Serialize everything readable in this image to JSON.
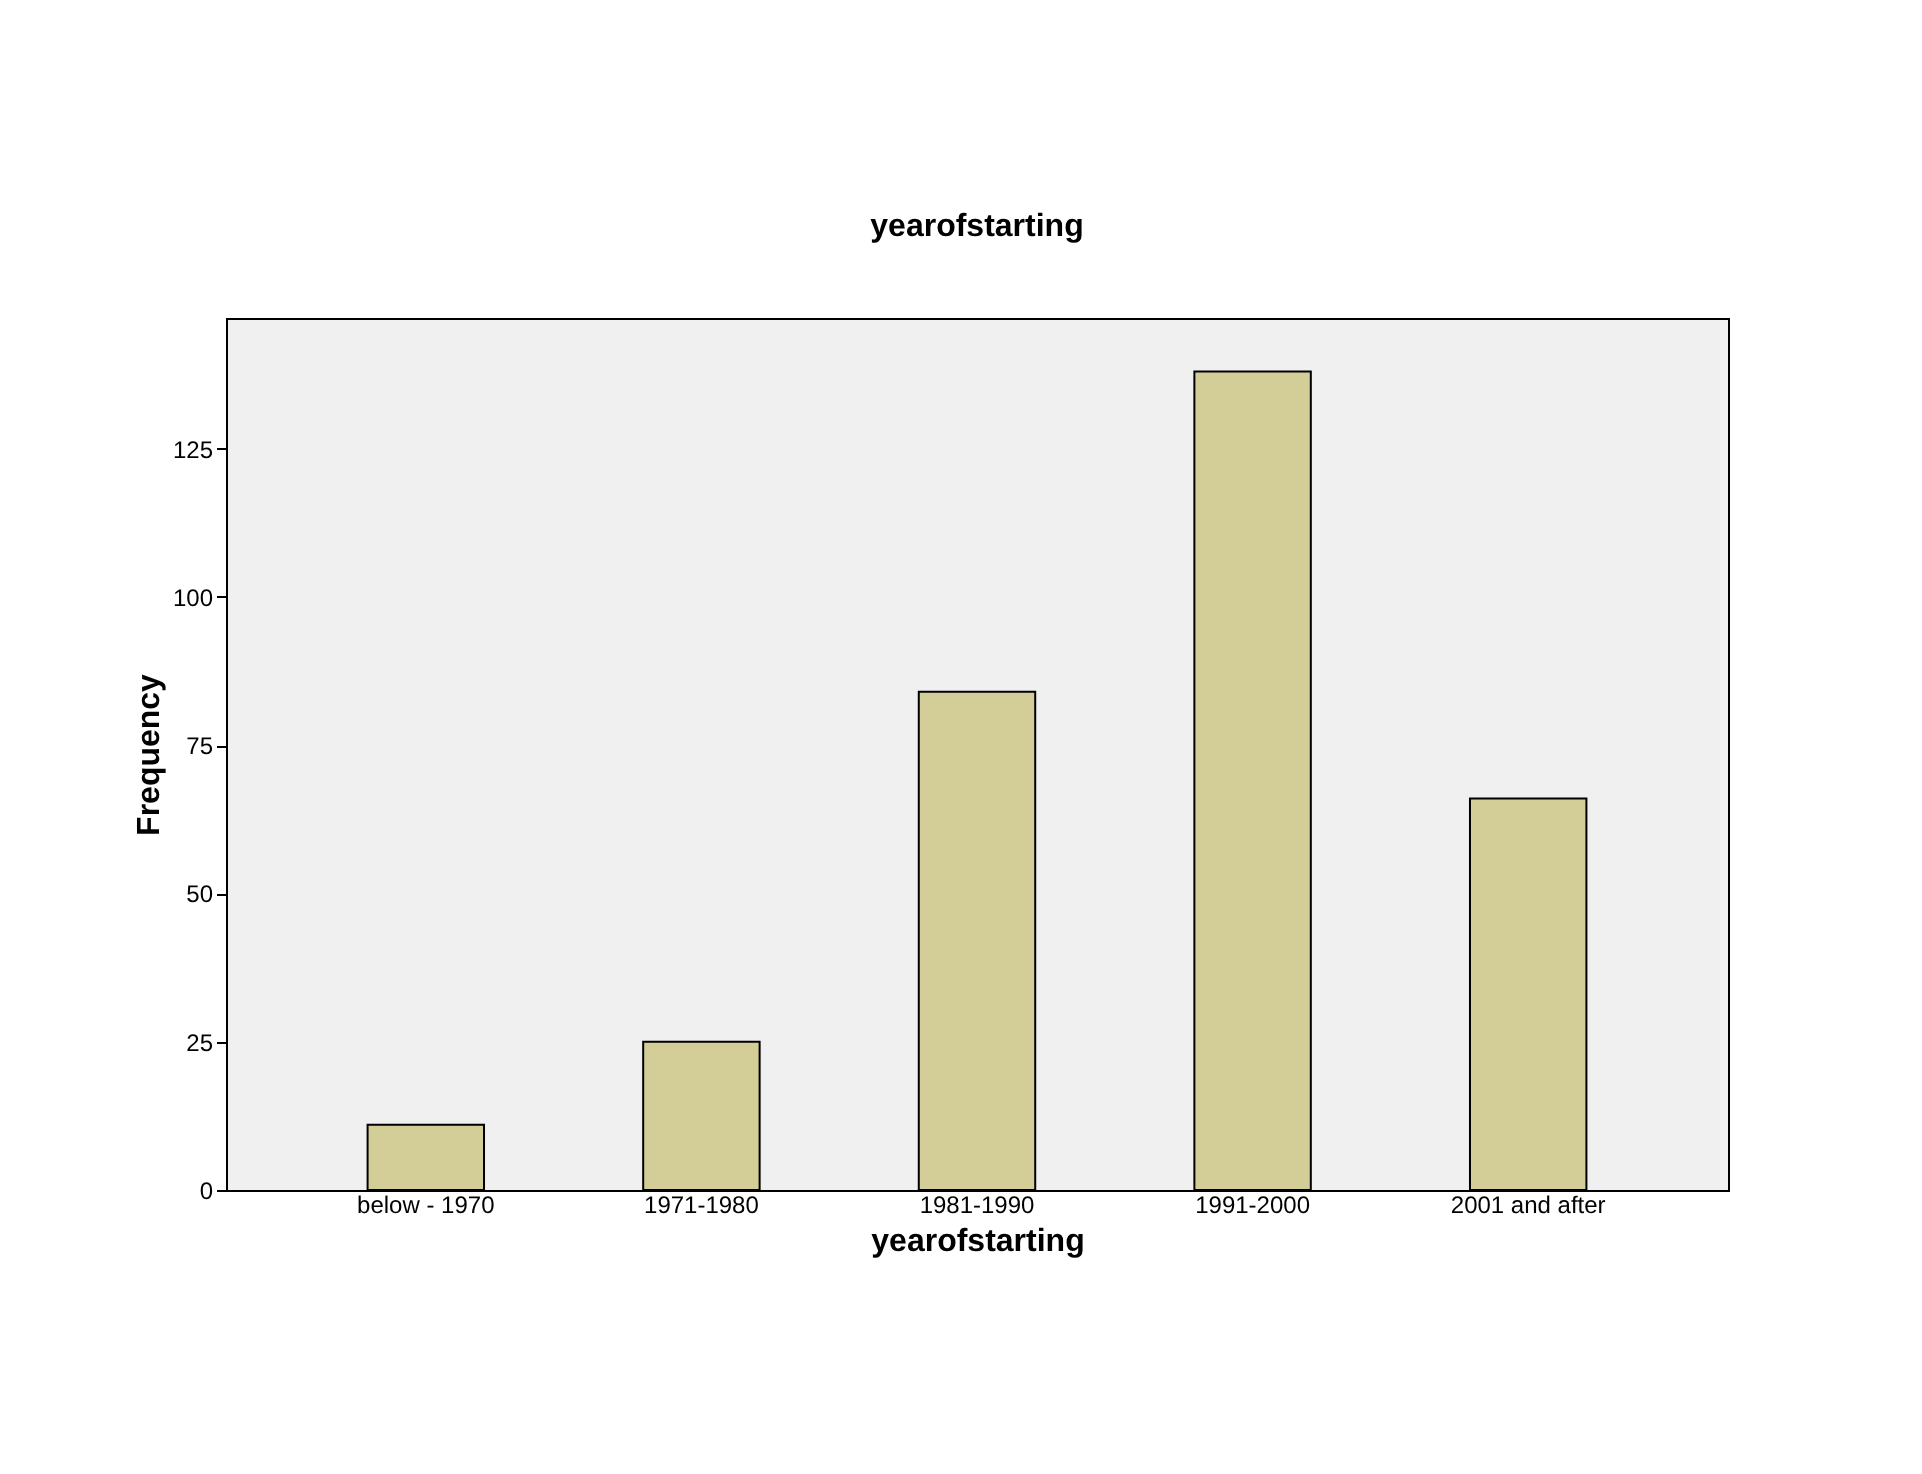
{
  "chart_data": {
    "type": "bar",
    "title": "yearofstarting",
    "xlabel": "yearofstarting",
    "ylabel": "Frequency",
    "categories": [
      "below - 1970",
      "1971-1980",
      "1981-1990",
      "1991-2000",
      "2001 and after"
    ],
    "values": [
      11,
      25,
      84,
      138,
      66
    ],
    "color": "#d3ce97",
    "ylim": [
      0,
      147
    ],
    "yticks": [
      0,
      25,
      50,
      75,
      100,
      125
    ],
    "grid": false
  }
}
